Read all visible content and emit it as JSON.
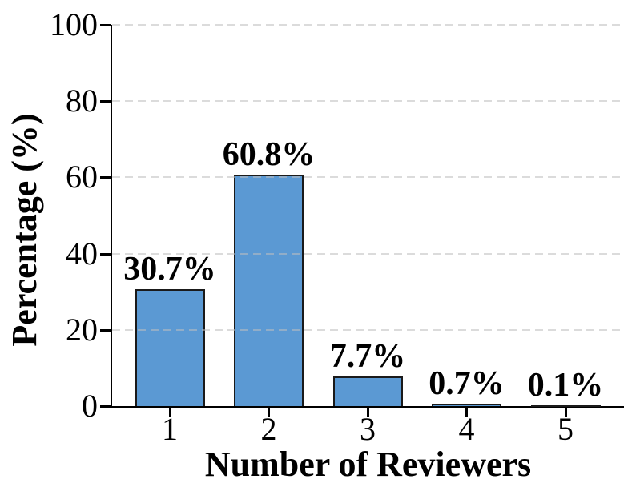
{
  "chart_data": {
    "type": "bar",
    "title": "",
    "xlabel": "Number of Reviewers",
    "ylabel": "Percentage (%)",
    "categories": [
      "1",
      "2",
      "3",
      "4",
      "5"
    ],
    "values": [
      30.7,
      60.8,
      7.7,
      0.7,
      0.1
    ],
    "value_labels": [
      "30.7%",
      "60.8%",
      "7.7%",
      "0.7%",
      "0.1%"
    ],
    "y_ticks": [
      0,
      20,
      40,
      60,
      80,
      100
    ],
    "ylim": [
      0,
      100
    ],
    "grid": "horizontal-dashed",
    "legend": "none",
    "colors": {
      "bar_fill": "#5B99D3",
      "bar_edge": "#1a1a1a",
      "grid_line": "#dbdbdb",
      "axis": "#000000",
      "background": "#ffffff"
    }
  }
}
